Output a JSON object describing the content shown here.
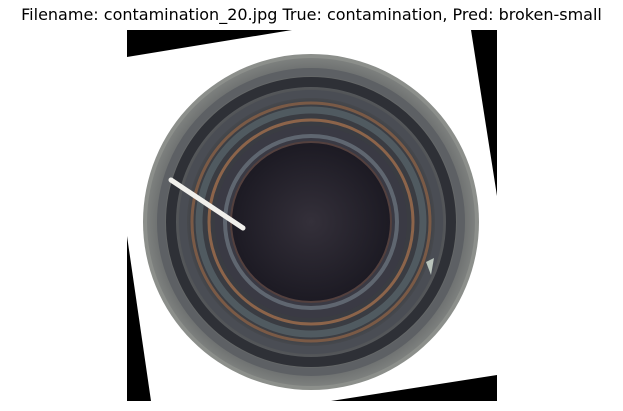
{
  "figure": {
    "title": "Filename: contamination_20.jpg True: contamination, Pred: broken-small"
  }
}
